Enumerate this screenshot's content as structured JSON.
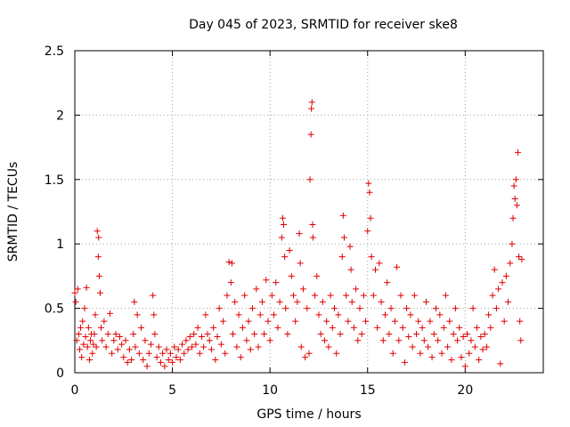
{
  "chart_data": {
    "type": "scatter",
    "title": "Day 045 of 2023, SRMTID for receiver ske8",
    "xlabel": "GPS time / hours",
    "ylabel": "SRMTID / TECUs",
    "xlim": [
      0,
      24
    ],
    "ylim": [
      0,
      2.5
    ],
    "x_ticks": [
      0,
      5,
      10,
      15,
      20
    ],
    "x_tick_labels": [
      "0",
      "5",
      "10",
      "15",
      "20"
    ],
    "y_ticks": [
      0,
      0.5,
      1,
      1.5,
      2,
      2.5
    ],
    "y_tick_labels": [
      "0",
      "0.5",
      "1",
      "1.5",
      "2",
      "2.5"
    ],
    "grid": true,
    "marker": "+",
    "series": [
      {
        "name": "SRMTID",
        "color": "#e00000",
        "points": [
          [
            0.0,
            0.62
          ],
          [
            0.05,
            0.55
          ],
          [
            0.1,
            0.25
          ],
          [
            0.15,
            0.65
          ],
          [
            0.2,
            0.3
          ],
          [
            0.25,
            0.18
          ],
          [
            0.3,
            0.35
          ],
          [
            0.35,
            0.12
          ],
          [
            0.4,
            0.4
          ],
          [
            0.45,
            0.22
          ],
          [
            0.5,
            0.5
          ],
          [
            0.55,
            0.28
          ],
          [
            0.6,
            0.66
          ],
          [
            0.65,
            0.2
          ],
          [
            0.7,
            0.35
          ],
          [
            0.75,
            0.1
          ],
          [
            0.8,
            0.25
          ],
          [
            0.85,
            0.3
          ],
          [
            0.9,
            0.15
          ],
          [
            0.95,
            0.22
          ],
          [
            1.0,
            0.3
          ],
          [
            1.05,
            0.45
          ],
          [
            1.1,
            0.2
          ],
          [
            1.15,
            1.1
          ],
          [
            1.2,
            0.9
          ],
          [
            1.22,
            1.05
          ],
          [
            1.25,
            0.75
          ],
          [
            1.3,
            0.62
          ],
          [
            1.35,
            0.35
          ],
          [
            1.4,
            0.25
          ],
          [
            1.5,
            0.4
          ],
          [
            1.6,
            0.2
          ],
          [
            1.7,
            0.3
          ],
          [
            1.8,
            0.46
          ],
          [
            1.9,
            0.15
          ],
          [
            2.0,
            0.25
          ],
          [
            2.1,
            0.3
          ],
          [
            2.2,
            0.18
          ],
          [
            2.3,
            0.28
          ],
          [
            2.4,
            0.22
          ],
          [
            2.5,
            0.12
          ],
          [
            2.6,
            0.25
          ],
          [
            2.7,
            0.08
          ],
          [
            2.8,
            0.18
          ],
          [
            2.9,
            0.1
          ],
          [
            3.0,
            0.3
          ],
          [
            3.05,
            0.55
          ],
          [
            3.1,
            0.2
          ],
          [
            3.2,
            0.45
          ],
          [
            3.3,
            0.15
          ],
          [
            3.4,
            0.35
          ],
          [
            3.5,
            0.1
          ],
          [
            3.6,
            0.25
          ],
          [
            3.7,
            0.05
          ],
          [
            3.8,
            0.15
          ],
          [
            3.9,
            0.22
          ],
          [
            4.0,
            0.6
          ],
          [
            4.05,
            0.45
          ],
          [
            4.1,
            0.3
          ],
          [
            4.2,
            0.12
          ],
          [
            4.3,
            0.2
          ],
          [
            4.4,
            0.08
          ],
          [
            4.5,
            0.15
          ],
          [
            4.6,
            0.05
          ],
          [
            4.7,
            0.18
          ],
          [
            4.8,
            0.1
          ],
          [
            4.9,
            0.15
          ],
          [
            5.0,
            0.08
          ],
          [
            5.1,
            0.2
          ],
          [
            5.2,
            0.12
          ],
          [
            5.3,
            0.18
          ],
          [
            5.4,
            0.1
          ],
          [
            5.5,
            0.22
          ],
          [
            5.6,
            0.15
          ],
          [
            5.7,
            0.25
          ],
          [
            5.8,
            0.18
          ],
          [
            5.9,
            0.28
          ],
          [
            6.0,
            0.2
          ],
          [
            6.1,
            0.3
          ],
          [
            6.2,
            0.22
          ],
          [
            6.3,
            0.35
          ],
          [
            6.4,
            0.15
          ],
          [
            6.5,
            0.28
          ],
          [
            6.6,
            0.2
          ],
          [
            6.7,
            0.45
          ],
          [
            6.8,
            0.3
          ],
          [
            6.9,
            0.25
          ],
          [
            7.0,
            0.18
          ],
          [
            7.1,
            0.35
          ],
          [
            7.2,
            0.1
          ],
          [
            7.3,
            0.28
          ],
          [
            7.4,
            0.5
          ],
          [
            7.5,
            0.22
          ],
          [
            7.6,
            0.4
          ],
          [
            7.7,
            0.15
          ],
          [
            7.8,
            0.6
          ],
          [
            7.9,
            0.86
          ],
          [
            8.0,
            0.7
          ],
          [
            8.05,
            0.85
          ],
          [
            8.1,
            0.3
          ],
          [
            8.2,
            0.55
          ],
          [
            8.3,
            0.2
          ],
          [
            8.4,
            0.45
          ],
          [
            8.5,
            0.12
          ],
          [
            8.6,
            0.35
          ],
          [
            8.7,
            0.6
          ],
          [
            8.8,
            0.25
          ],
          [
            8.9,
            0.4
          ],
          [
            9.0,
            0.18
          ],
          [
            9.1,
            0.5
          ],
          [
            9.2,
            0.3
          ],
          [
            9.3,
            0.65
          ],
          [
            9.4,
            0.2
          ],
          [
            9.5,
            0.45
          ],
          [
            9.6,
            0.55
          ],
          [
            9.7,
            0.3
          ],
          [
            9.8,
            0.72
          ],
          [
            9.9,
            0.4
          ],
          [
            10.0,
            0.25
          ],
          [
            10.1,
            0.6
          ],
          [
            10.2,
            0.45
          ],
          [
            10.3,
            0.7
          ],
          [
            10.4,
            0.35
          ],
          [
            10.5,
            0.55
          ],
          [
            10.6,
            1.05
          ],
          [
            10.65,
            1.2
          ],
          [
            10.7,
            1.15
          ],
          [
            10.75,
            0.9
          ],
          [
            10.8,
            0.5
          ],
          [
            10.9,
            0.3
          ],
          [
            11.0,
            0.95
          ],
          [
            11.1,
            0.75
          ],
          [
            11.2,
            0.6
          ],
          [
            11.3,
            0.4
          ],
          [
            11.4,
            0.55
          ],
          [
            11.5,
            1.08
          ],
          [
            11.55,
            0.85
          ],
          [
            11.6,
            0.2
          ],
          [
            11.7,
            0.65
          ],
          [
            11.8,
            0.12
          ],
          [
            11.9,
            0.5
          ],
          [
            12.0,
            0.15
          ],
          [
            12.05,
            1.5
          ],
          [
            12.1,
            1.85
          ],
          [
            12.12,
            2.05
          ],
          [
            12.15,
            2.1
          ],
          [
            12.18,
            1.15
          ],
          [
            12.2,
            1.05
          ],
          [
            12.3,
            0.6
          ],
          [
            12.4,
            0.75
          ],
          [
            12.5,
            0.45
          ],
          [
            12.6,
            0.3
          ],
          [
            12.7,
            0.55
          ],
          [
            12.8,
            0.25
          ],
          [
            12.9,
            0.4
          ],
          [
            13.0,
            0.2
          ],
          [
            13.1,
            0.6
          ],
          [
            13.2,
            0.35
          ],
          [
            13.3,
            0.5
          ],
          [
            13.4,
            0.15
          ],
          [
            13.5,
            0.45
          ],
          [
            13.6,
            0.3
          ],
          [
            13.7,
            0.9
          ],
          [
            13.75,
            1.22
          ],
          [
            13.8,
            1.05
          ],
          [
            13.9,
            0.6
          ],
          [
            14.0,
            0.4
          ],
          [
            14.1,
            0.98
          ],
          [
            14.15,
            0.8
          ],
          [
            14.2,
            0.55
          ],
          [
            14.3,
            0.35
          ],
          [
            14.4,
            0.65
          ],
          [
            14.5,
            0.25
          ],
          [
            14.6,
            0.5
          ],
          [
            14.7,
            0.3
          ],
          [
            14.8,
            0.6
          ],
          [
            14.9,
            0.4
          ],
          [
            15.0,
            1.1
          ],
          [
            15.05,
            1.47
          ],
          [
            15.1,
            1.4
          ],
          [
            15.15,
            1.2
          ],
          [
            15.2,
            0.9
          ],
          [
            15.3,
            0.6
          ],
          [
            15.4,
            0.8
          ],
          [
            15.5,
            0.35
          ],
          [
            15.6,
            0.85
          ],
          [
            15.7,
            0.55
          ],
          [
            15.8,
            0.25
          ],
          [
            15.9,
            0.45
          ],
          [
            16.0,
            0.7
          ],
          [
            16.1,
            0.3
          ],
          [
            16.2,
            0.5
          ],
          [
            16.3,
            0.15
          ],
          [
            16.4,
            0.4
          ],
          [
            16.5,
            0.82
          ],
          [
            16.6,
            0.25
          ],
          [
            16.7,
            0.6
          ],
          [
            16.8,
            0.35
          ],
          [
            16.9,
            0.08
          ],
          [
            17.0,
            0.5
          ],
          [
            17.1,
            0.28
          ],
          [
            17.2,
            0.45
          ],
          [
            17.3,
            0.2
          ],
          [
            17.4,
            0.6
          ],
          [
            17.5,
            0.3
          ],
          [
            17.6,
            0.4
          ],
          [
            17.7,
            0.15
          ],
          [
            17.8,
            0.35
          ],
          [
            17.9,
            0.25
          ],
          [
            18.0,
            0.55
          ],
          [
            18.1,
            0.2
          ],
          [
            18.2,
            0.4
          ],
          [
            18.3,
            0.12
          ],
          [
            18.4,
            0.3
          ],
          [
            18.5,
            0.5
          ],
          [
            18.6,
            0.25
          ],
          [
            18.7,
            0.45
          ],
          [
            18.8,
            0.15
          ],
          [
            18.9,
            0.35
          ],
          [
            19.0,
            0.6
          ],
          [
            19.1,
            0.2
          ],
          [
            19.2,
            0.4
          ],
          [
            19.3,
            0.1
          ],
          [
            19.4,
            0.3
          ],
          [
            19.5,
            0.5
          ],
          [
            19.6,
            0.25
          ],
          [
            19.7,
            0.35
          ],
          [
            19.8,
            0.12
          ],
          [
            19.9,
            0.28
          ],
          [
            20.0,
            0.05
          ],
          [
            20.1,
            0.3
          ],
          [
            20.2,
            0.15
          ],
          [
            20.3,
            0.25
          ],
          [
            20.4,
            0.5
          ],
          [
            20.5,
            0.2
          ],
          [
            20.6,
            0.35
          ],
          [
            20.7,
            0.1
          ],
          [
            20.8,
            0.28
          ],
          [
            20.9,
            0.18
          ],
          [
            21.0,
            0.3
          ],
          [
            21.1,
            0.2
          ],
          [
            21.2,
            0.45
          ],
          [
            21.3,
            0.35
          ],
          [
            21.4,
            0.6
          ],
          [
            21.5,
            0.8
          ],
          [
            21.6,
            0.5
          ],
          [
            21.7,
            0.65
          ],
          [
            21.8,
            0.07
          ],
          [
            21.9,
            0.7
          ],
          [
            22.0,
            0.4
          ],
          [
            22.1,
            0.75
          ],
          [
            22.2,
            0.55
          ],
          [
            22.3,
            0.85
          ],
          [
            22.4,
            1.0
          ],
          [
            22.45,
            1.2
          ],
          [
            22.5,
            1.45
          ],
          [
            22.55,
            1.35
          ],
          [
            22.6,
            1.5
          ],
          [
            22.65,
            1.3
          ],
          [
            22.7,
            1.71
          ],
          [
            22.75,
            0.9
          ],
          [
            22.8,
            0.4
          ],
          [
            22.85,
            0.25
          ],
          [
            22.9,
            0.88
          ]
        ]
      }
    ]
  }
}
